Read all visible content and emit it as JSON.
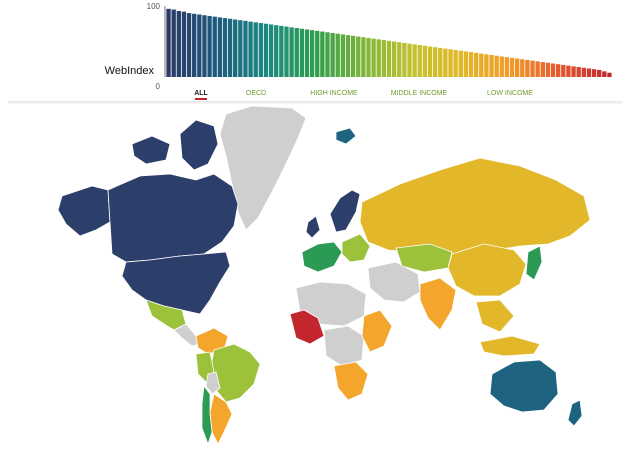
{
  "chart_data": {
    "type": "bar",
    "ylabel": "WebIndex",
    "ylim": [
      0,
      100
    ],
    "yticks": [
      "100",
      "0"
    ],
    "values": [
      96,
      95,
      93,
      92,
      90,
      89,
      88,
      87,
      86,
      85,
      84,
      83,
      82,
      81,
      80,
      79,
      78,
      77,
      76,
      75,
      74,
      73,
      72,
      71,
      70,
      69,
      68,
      67,
      66,
      65,
      64,
      63,
      62,
      61,
      60,
      59,
      58,
      57,
      56,
      55,
      54,
      53,
      52,
      51,
      50,
      49,
      48,
      47,
      46,
      45,
      44,
      43,
      42,
      41,
      40,
      39,
      38,
      37,
      36,
      35,
      34,
      33,
      32,
      31,
      30,
      29,
      28,
      27,
      26,
      25,
      24,
      23,
      22,
      21,
      20,
      19,
      18,
      17,
      16,
      15,
      14,
      13,
      12,
      11,
      10,
      8,
      6
    ],
    "color_scale": [
      "#2b3a67",
      "#1e5b7d",
      "#1b8a83",
      "#2f9e4e",
      "#7fb63b",
      "#c4c230",
      "#e2b728",
      "#f29a2a",
      "#e4572e",
      "#c0262d"
    ],
    "filters": [
      "ALL",
      "OECD",
      "HIGH INCOME",
      "MIDDLE INCOME",
      "LOW INCOME"
    ],
    "active_filter": "ALL"
  },
  "map": {
    "colors": {
      "top_tier": "#2c3f6b",
      "high": "#1e6480",
      "upper": "#2a9a55",
      "middle_high": "#9bc23a",
      "middle": "#e3b72a",
      "lower": "#f4a52b",
      "low": "#e4552e",
      "lowest": "#c3262d",
      "no_data": "#cfcfcf"
    }
  }
}
